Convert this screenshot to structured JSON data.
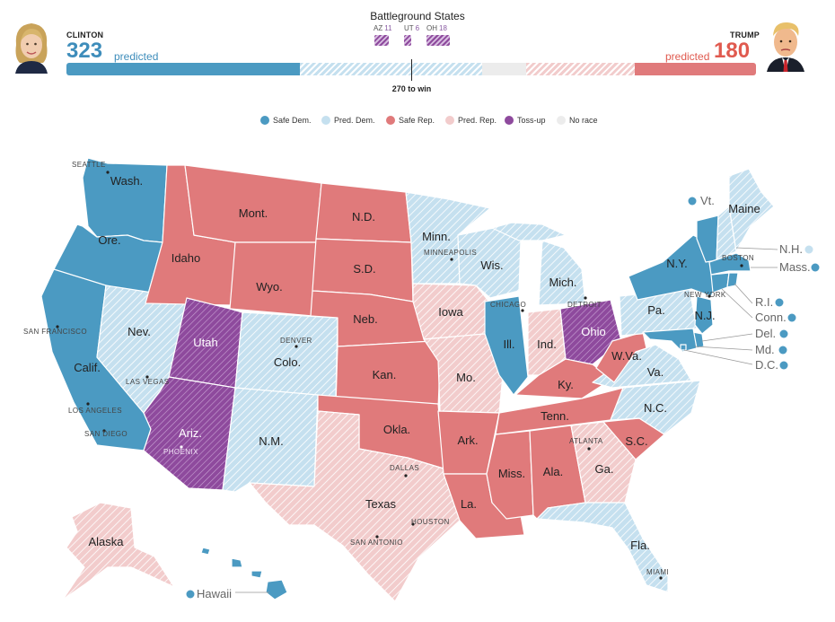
{
  "colors": {
    "safe_dem": "#4b9ac2",
    "pred_dem": "#c5e0ef",
    "safe_rep": "#e07a7b",
    "pred_rep": "#f2cccc",
    "toss_up": "#8e4a9d",
    "no_race": "#ececec",
    "dem_text": "#3e8dbb",
    "rep_text": "#e05a4f"
  },
  "header": {
    "clinton": {
      "name": "CLINTON",
      "count": "323",
      "predicted": "predicted"
    },
    "trump": {
      "name": "TRUMP",
      "count": "180",
      "predicted": "predicted"
    },
    "battleground_title": "Battleground States",
    "battleground": [
      {
        "state": "AZ",
        "ev": "11"
      },
      {
        "state": "UT",
        "ev": "6"
      },
      {
        "state": "OH",
        "ev": "18"
      }
    ],
    "win_label": "270 to win"
  },
  "ev_bar": {
    "safe_dem": 0.338,
    "pred_dem": 0.264,
    "no_race": 0.064,
    "pred_rep": 0.158,
    "safe_rep": 0.176
  },
  "legend": [
    {
      "label": "Safe Dem.",
      "cat": "safe_dem"
    },
    {
      "label": "Pred. Dem.",
      "cat": "pred_dem"
    },
    {
      "label": "Safe Rep.",
      "cat": "safe_rep"
    },
    {
      "label": "Pred. Rep.",
      "cat": "pred_rep"
    },
    {
      "label": "Toss-up",
      "cat": "toss_up"
    },
    {
      "label": "No race",
      "cat": "no_race"
    }
  ],
  "states": [
    {
      "id": "wa",
      "label": "Wash.",
      "cat": "safe_dem"
    },
    {
      "id": "or",
      "label": "Ore.",
      "cat": "safe_dem"
    },
    {
      "id": "ca",
      "label": "Calif.",
      "cat": "safe_dem"
    },
    {
      "id": "nv",
      "label": "Nev.",
      "cat": "pred_dem"
    },
    {
      "id": "id",
      "label": "Idaho",
      "cat": "safe_rep"
    },
    {
      "id": "mt",
      "label": "Mont.",
      "cat": "safe_rep"
    },
    {
      "id": "wy",
      "label": "Wyo.",
      "cat": "safe_rep"
    },
    {
      "id": "ut",
      "label": "Utah",
      "cat": "toss_up"
    },
    {
      "id": "az",
      "label": "Ariz.",
      "cat": "toss_up"
    },
    {
      "id": "co",
      "label": "Colo.",
      "cat": "pred_dem"
    },
    {
      "id": "nm",
      "label": "N.M.",
      "cat": "pred_dem"
    },
    {
      "id": "nd",
      "label": "N.D.",
      "cat": "safe_rep"
    },
    {
      "id": "sd",
      "label": "S.D.",
      "cat": "safe_rep"
    },
    {
      "id": "ne",
      "label": "Neb.",
      "cat": "safe_rep"
    },
    {
      "id": "ks",
      "label": "Kan.",
      "cat": "safe_rep"
    },
    {
      "id": "ok",
      "label": "Okla.",
      "cat": "safe_rep"
    },
    {
      "id": "tx",
      "label": "Texas",
      "cat": "pred_rep"
    },
    {
      "id": "mn",
      "label": "Minn.",
      "cat": "pred_dem"
    },
    {
      "id": "ia",
      "label": "Iowa",
      "cat": "pred_rep"
    },
    {
      "id": "mo",
      "label": "Mo.",
      "cat": "pred_rep"
    },
    {
      "id": "ar",
      "label": "Ark.",
      "cat": "safe_rep"
    },
    {
      "id": "la",
      "label": "La.",
      "cat": "safe_rep"
    },
    {
      "id": "wi",
      "label": "Wis.",
      "cat": "pred_dem"
    },
    {
      "id": "il",
      "label": "Ill.",
      "cat": "safe_dem"
    },
    {
      "id": "mi",
      "label": "Mich.",
      "cat": "pred_dem"
    },
    {
      "id": "in",
      "label": "Ind.",
      "cat": "pred_rep"
    },
    {
      "id": "oh",
      "label": "Ohio",
      "cat": "toss_up"
    },
    {
      "id": "ky",
      "label": "Ky.",
      "cat": "safe_rep"
    },
    {
      "id": "tn",
      "label": "Tenn.",
      "cat": "safe_rep"
    },
    {
      "id": "ms",
      "label": "Miss.",
      "cat": "safe_rep"
    },
    {
      "id": "al",
      "label": "Ala.",
      "cat": "safe_rep"
    },
    {
      "id": "ga",
      "label": "Ga.",
      "cat": "pred_rep"
    },
    {
      "id": "fl",
      "label": "Fla.",
      "cat": "pred_dem"
    },
    {
      "id": "sc",
      "label": "S.C.",
      "cat": "safe_rep"
    },
    {
      "id": "nc",
      "label": "N.C.",
      "cat": "pred_dem"
    },
    {
      "id": "va",
      "label": "Va.",
      "cat": "pred_dem"
    },
    {
      "id": "wv",
      "label": "W.Va.",
      "cat": "safe_rep"
    },
    {
      "id": "pa",
      "label": "Pa.",
      "cat": "pred_dem"
    },
    {
      "id": "ny",
      "label": "N.Y.",
      "cat": "safe_dem"
    },
    {
      "id": "nj",
      "label": "N.J.",
      "cat": "safe_dem"
    },
    {
      "id": "me",
      "label": "Maine",
      "cat": "pred_dem"
    },
    {
      "id": "nh",
      "label": "N.H.",
      "cat": "pred_dem"
    },
    {
      "id": "vt",
      "label": "Vt.",
      "cat": "safe_dem"
    },
    {
      "id": "ma",
      "label": "Mass.",
      "cat": "safe_dem"
    },
    {
      "id": "ri",
      "label": "R.I.",
      "cat": "safe_dem"
    },
    {
      "id": "ct",
      "label": "Conn.",
      "cat": "safe_dem"
    },
    {
      "id": "de",
      "label": "Del.",
      "cat": "safe_dem"
    },
    {
      "id": "md",
      "label": "Md.",
      "cat": "safe_dem"
    },
    {
      "id": "dc",
      "label": "D.C.",
      "cat": "safe_dem"
    },
    {
      "id": "ak",
      "label": "Alaska",
      "cat": "pred_rep"
    },
    {
      "id": "hi",
      "label": "Hawaii",
      "cat": "safe_dem"
    }
  ],
  "cities": [
    "SEATTLE",
    "SAN FRANCISCO",
    "LAS VEGAS",
    "LOS ANGELES",
    "SAN DIEGO",
    "PHOENIX",
    "DENVER",
    "MINNEAPOLIS",
    "CHICAGO",
    "DETROIT",
    "NEW YORK",
    "BOSTON",
    "ATLANTA",
    "DALLAS",
    "HOUSTON",
    "SAN ANTONIO",
    "MIAMI"
  ]
}
